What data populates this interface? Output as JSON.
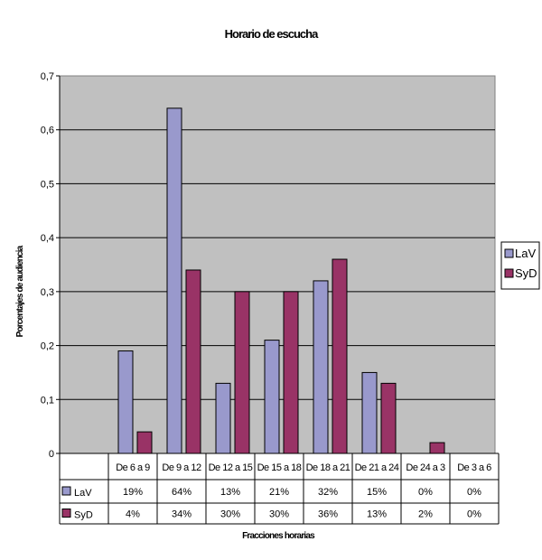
{
  "chart_data": {
    "type": "bar",
    "title": "Horario de escucha",
    "xlabel": "Fracciones horarias",
    "ylabel": "Porcentajes de audiencia",
    "ylim": [
      0,
      0.7
    ],
    "yticks": [
      "0",
      "0,1",
      "0,2",
      "0,3",
      "0,4",
      "0,5",
      "0,6",
      "0,7"
    ],
    "grid": true,
    "legend_position": "right",
    "categories": [
      "De 6 a 9",
      "De 9 a 12",
      "De 12 a 15",
      "De 15 a 18",
      "De 18 a 21",
      "De 21 a 24",
      "De 24 a 3",
      "De 3 a 6"
    ],
    "series": [
      {
        "name": "LaV",
        "color": "#9999cc",
        "values": [
          0.19,
          0.64,
          0.13,
          0.21,
          0.32,
          0.15,
          0,
          0
        ],
        "table_labels": [
          "19%",
          "64%",
          "13%",
          "21%",
          "32%",
          "15%",
          "0%",
          "0%"
        ]
      },
      {
        "name": "SyD",
        "color": "#993366",
        "values": [
          0.04,
          0.34,
          0.3,
          0.3,
          0.36,
          0.13,
          0.02,
          0
        ],
        "table_labels": [
          "4%",
          "34%",
          "30%",
          "30%",
          "36%",
          "13%",
          "2%",
          "0%"
        ]
      }
    ]
  }
}
